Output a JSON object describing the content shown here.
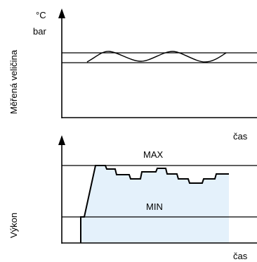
{
  "top_chart": {
    "unit_line1": "°C",
    "unit_line2": "bar",
    "ylabel": "Měřená veličina",
    "xlabel": "čas"
  },
  "bottom_chart": {
    "max_label": "MAX",
    "min_label": "MIN",
    "ylabel": "Výkon",
    "xlabel": "čas"
  }
}
